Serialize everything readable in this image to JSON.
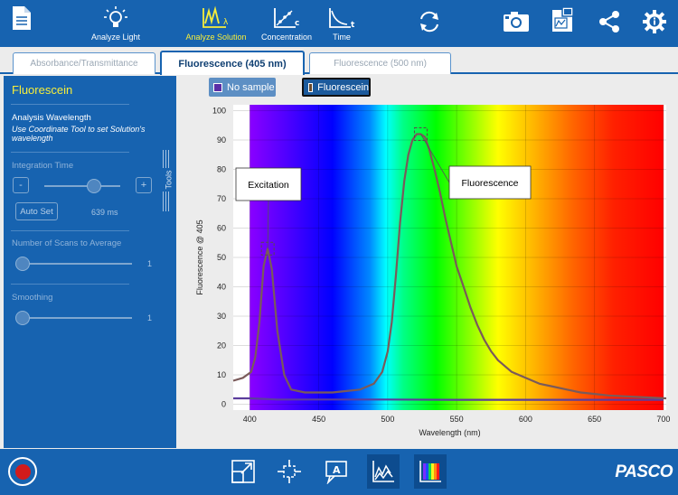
{
  "toolbar": {
    "analyze_light": "Analyze Light",
    "analyze_solution": "Analyze Solution",
    "concentration": "Concentration",
    "time": "Time"
  },
  "tabs": [
    {
      "label": "Absorbance/Transmittance",
      "active": false
    },
    {
      "label": "Fluorescence (405 nm)",
      "active": true
    },
    {
      "label": "Fluorescence (500 nm)",
      "active": false
    }
  ],
  "panel": {
    "title": "Fluorescein",
    "analysis_wavelength_label": "Analysis Wavelength",
    "analysis_wavelength_note": "Use Coordinate Tool to set Solution's wavelength",
    "integration_time_label": "Integration Time",
    "minus_label": "-",
    "plus_label": "+",
    "integration_time_level": 0.65,
    "auto_set_label": "Auto Set",
    "integration_time_value": "639 ms",
    "scans_label": "Number of Scans to Average",
    "scans_value": "1",
    "smoothing_label": "Smoothing",
    "smoothing_value": "1",
    "tools_label": "Tools"
  },
  "legend": [
    {
      "name": "No sample",
      "color": "#5a2ea6",
      "selected": false
    },
    {
      "name": "Fluorescein",
      "color": "#6b4a2b",
      "selected": true
    }
  ],
  "chart_data": {
    "type": "line",
    "xlabel": "Wavelength (nm)",
    "ylabel": "Fluorescence @ 405",
    "xlim": [
      388,
      702
    ],
    "ylim": [
      -2,
      102
    ],
    "xticks": [
      400,
      450,
      500,
      550,
      600,
      650,
      700
    ],
    "yticks": [
      0,
      10,
      20,
      30,
      40,
      50,
      60,
      70,
      80,
      90,
      100
    ],
    "grid": true,
    "background": "visible-spectrum",
    "series": [
      {
        "name": "No sample",
        "color": "#5b3d9c",
        "x": [
          388,
          400,
          410,
          420,
          430,
          450,
          500,
          550,
          600,
          650,
          700
        ],
        "y": [
          2.0,
          2.0,
          1.8,
          1.6,
          1.6,
          1.6,
          1.6,
          1.5,
          1.5,
          1.5,
          1.5
        ]
      },
      {
        "name": "Fluorescein",
        "color": "#7a5a5a",
        "x": [
          388,
          395,
          398,
          401,
          404,
          407,
          410,
          413,
          416,
          420,
          425,
          430,
          440,
          460,
          480,
          490,
          496,
          500,
          503,
          506,
          509,
          512,
          515,
          518,
          521,
          524,
          527,
          530,
          534,
          538,
          542,
          546,
          550,
          555,
          560,
          565,
          570,
          575,
          580,
          590,
          600,
          610,
          620,
          630,
          640,
          650,
          660,
          680,
          702
        ],
        "y": [
          8,
          9,
          10,
          11,
          16,
          28,
          47,
          53,
          46,
          25,
          10,
          5,
          4,
          4,
          5,
          7,
          11,
          18,
          28,
          44,
          62,
          76,
          85,
          90,
          92,
          92,
          91,
          87,
          80,
          72,
          63,
          55,
          47,
          40,
          33,
          27,
          22,
          18,
          15,
          11,
          9,
          7,
          6,
          5,
          4,
          3.5,
          3,
          2.5,
          2
        ]
      }
    ],
    "annotations": [
      {
        "text": "Excitation",
        "x": 413,
        "y": 53
      },
      {
        "text": "Fluorescence",
        "x": 524,
        "y": 92
      }
    ]
  }
}
